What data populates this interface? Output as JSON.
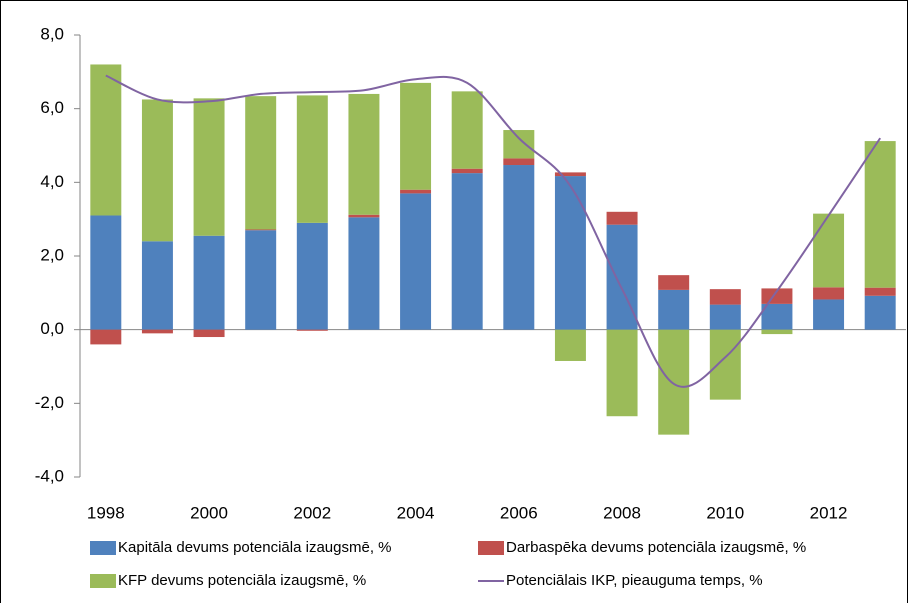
{
  "chart_data": {
    "type": "bar",
    "stacked": true,
    "grid": false,
    "categories": [
      "1998",
      null,
      "2000",
      null,
      "2002",
      null,
      "2004",
      null,
      "2006",
      null,
      "2008",
      null,
      "2010",
      null,
      "2012",
      null
    ],
    "series": [
      {
        "name": "Kapitāla devums potenciāla izaugsmē, %",
        "color": "#4f81bd",
        "values": [
          3.1,
          2.4,
          2.55,
          2.7,
          2.9,
          3.05,
          3.7,
          4.25,
          4.47,
          4.17,
          2.85,
          1.08,
          0.68,
          0.7,
          0.82,
          0.92
        ]
      },
      {
        "name": "Darbaspēka devums potenciāla izaugsmē, %",
        "color": "#c0504d",
        "values": [
          -0.4,
          -0.1,
          -0.2,
          0.02,
          -0.03,
          0.07,
          0.1,
          0.12,
          0.18,
          0.1,
          0.35,
          0.4,
          0.42,
          0.42,
          0.33,
          0.22
        ]
      },
      {
        "name": "KFP devums potenciāla izaugsmē, %",
        "color": "#9bbb59",
        "values": [
          4.1,
          3.85,
          3.73,
          3.62,
          3.46,
          3.28,
          2.9,
          2.1,
          0.77,
          -0.85,
          -2.35,
          -2.85,
          -1.9,
          -0.12,
          2.0,
          3.98
        ]
      },
      {
        "name": "Potenciālais IKP, pieauguma temps, %",
        "color": "#8064a2",
        "type": "line",
        "values": [
          6.9,
          6.25,
          6.2,
          6.4,
          6.45,
          6.5,
          6.8,
          6.7,
          5.2,
          3.9,
          1.1,
          -1.47,
          -0.75,
          1.05,
          3.1,
          5.2
        ]
      }
    ],
    "ylim": [
      -4,
      8
    ],
    "yticks": [
      {
        "value": -4,
        "label": "-4,0"
      },
      {
        "value": -2,
        "label": "-2,0"
      },
      {
        "value": 0,
        "label": "0,0"
      },
      {
        "value": 2,
        "label": "2,0"
      },
      {
        "value": 4,
        "label": "4,0"
      },
      {
        "value": 6,
        "label": "6,0"
      },
      {
        "value": 8,
        "label": "8,0"
      }
    ]
  }
}
